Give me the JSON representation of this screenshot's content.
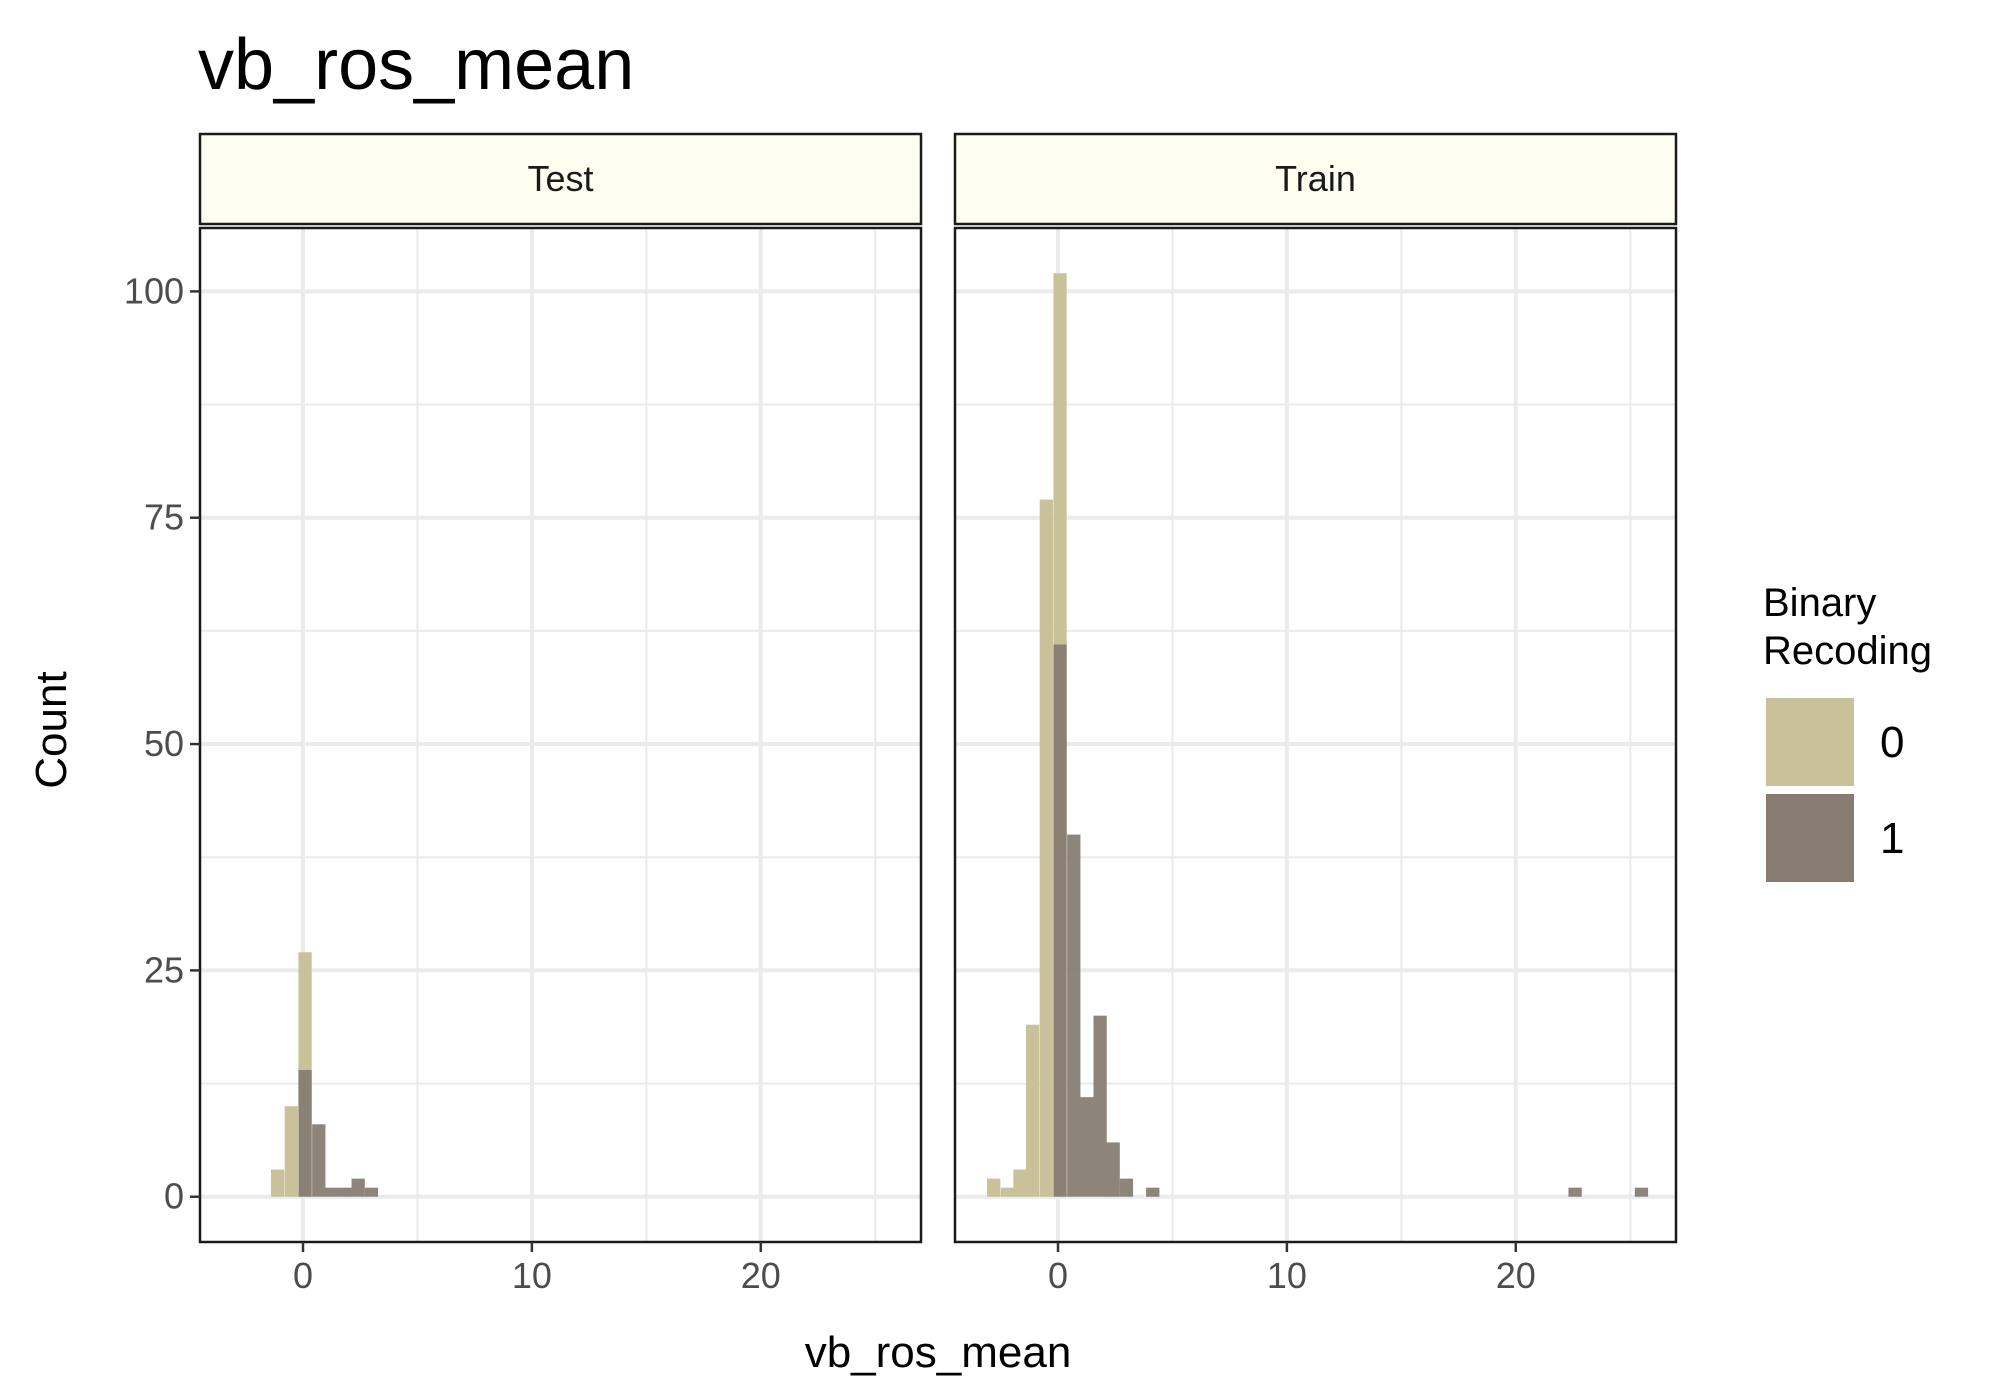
{
  "chart_data": {
    "type": "bar",
    "subtype": "histogram-faceted",
    "title": "vb_ros_mean",
    "xlabel": "vb_ros_mean",
    "ylabel": "Count",
    "xlim": [
      -4.5,
      27
    ],
    "ylim": [
      -5,
      107
    ],
    "x_ticks": [
      0,
      10,
      20
    ],
    "x_minor_ticks": [
      5,
      15,
      25
    ],
    "y_ticks": [
      0,
      25,
      50,
      75,
      100
    ],
    "y_minor_ticks": [
      12.5,
      37.5,
      62.5,
      87.5
    ],
    "grid": true,
    "bin_width": 0.58,
    "legend": {
      "title_lines": [
        "Binary",
        "Recoding"
      ],
      "position": "right",
      "entries": [
        {
          "label": "0",
          "color": "#c8c19a"
        },
        {
          "label": "1",
          "color": "#867c72"
        }
      ]
    },
    "colors": {
      "strip_fill": "#fdfef0",
      "grid": "#ebebeb",
      "panel_border": "#1a1a1a",
      "tick_text": "#4d4d4d"
    },
    "facets": [
      {
        "label": "Test",
        "series": [
          {
            "name": "0",
            "bins": [
              {
                "x0": -1.4,
                "count": 3
              },
              {
                "x0": -0.8,
                "count": 10
              },
              {
                "x0": -0.2,
                "count": 27
              }
            ]
          },
          {
            "name": "1",
            "bins": [
              {
                "x0": -0.2,
                "count": 14
              },
              {
                "x0": 0.4,
                "count": 8
              },
              {
                "x0": 0.97,
                "count": 1
              },
              {
                "x0": 1.55,
                "count": 1
              },
              {
                "x0": 2.12,
                "count": 2
              },
              {
                "x0": 2.7,
                "count": 1
              }
            ]
          }
        ]
      },
      {
        "label": "Train",
        "series": [
          {
            "name": "0",
            "bins": [
              {
                "x0": -3.1,
                "count": 2
              },
              {
                "x0": -2.5,
                "count": 1
              },
              {
                "x0": -1.95,
                "count": 3
              },
              {
                "x0": -1.4,
                "count": 19
              },
              {
                "x0": -0.8,
                "count": 77
              },
              {
                "x0": -0.2,
                "count": 102
              }
            ]
          },
          {
            "name": "1",
            "bins": [
              {
                "x0": -0.2,
                "count": 61
              },
              {
                "x0": 0.4,
                "count": 40
              },
              {
                "x0": 0.97,
                "count": 11
              },
              {
                "x0": 1.55,
                "count": 20
              },
              {
                "x0": 2.12,
                "count": 6
              },
              {
                "x0": 2.7,
                "count": 2
              },
              {
                "x0": 3.85,
                "count": 1
              },
              {
                "x0": 22.3,
                "count": 1
              },
              {
                "x0": 25.2,
                "count": 1
              }
            ]
          }
        ]
      }
    ]
  }
}
